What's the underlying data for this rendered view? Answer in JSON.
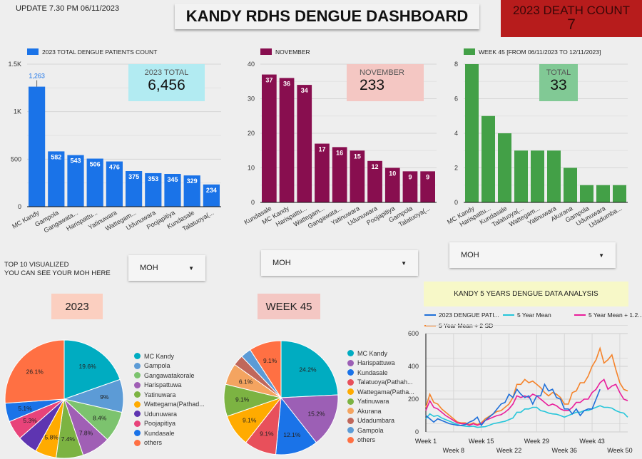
{
  "header": {
    "update": "UPDATE  7.30 PM  06/11/2023",
    "title": "KANDY RDHS DENGUE DASHBOARD",
    "death_label": "2023 DEATH COUNT",
    "death_value": "7"
  },
  "colors": {
    "blue": "#1a73e8",
    "maroon": "#880e4f",
    "green": "#43a047",
    "death": "#b71c1c"
  },
  "chart_data": [
    {
      "type": "bar",
      "id": "c1",
      "legend": "2023 TOTAL DENGUE PATIENTS COUNT",
      "categories": [
        "MC Kandy",
        "Gampola",
        "Gangawata...",
        "Harispattu...",
        "Yatinuwara",
        "Wattegam...",
        "Udunuwara",
        "Poojapitiya",
        "Kundasale",
        "Talatuoya(..."
      ],
      "values": [
        1263,
        582,
        543,
        506,
        476,
        375,
        353,
        345,
        329,
        234
      ],
      "data_labels": [
        "1,263",
        "582",
        "543",
        "506",
        "476",
        "375",
        "353",
        "345",
        "329",
        "234"
      ],
      "ylim": [
        0,
        1500
      ],
      "yticks": [
        0,
        500,
        1000,
        1500
      ],
      "ytick_labels": [
        "0",
        "500",
        "1K",
        "1.5K"
      ],
      "color": "#1a73e8"
    },
    {
      "type": "bar",
      "id": "c2",
      "legend": "NOVEMBER",
      "categories": [
        "Kundasale",
        "MC Kandy",
        "Harispattu...",
        "Wattegam...",
        "Gangawata...",
        "Yatinuwara",
        "Udunuwara",
        "Poojapitiya",
        "Gampola",
        "Talatuoya(..."
      ],
      "values": [
        37,
        36,
        34,
        17,
        16,
        15,
        12,
        10,
        9,
        9
      ],
      "data_labels": [
        "37",
        "36",
        "34",
        "17",
        "16",
        "15",
        "12",
        "10",
        "9",
        "9"
      ],
      "ylim": [
        0,
        40
      ],
      "yticks": [
        0,
        10,
        20,
        30,
        40
      ],
      "ytick_labels": [
        "0",
        "10",
        "20",
        "30",
        "40"
      ],
      "color": "#880e4f"
    },
    {
      "type": "bar",
      "id": "c3",
      "legend": "WEEK 45 [FROM 06/11/2023 TO 12/11/2023]",
      "categories": [
        "MC Kandy",
        "Harispattu...",
        "Kundasale",
        "Talatuoya(...",
        "Wattegam...",
        "Yatinuwara",
        "Akurana",
        "Gampola",
        "Udunuwara",
        "Udadumba..."
      ],
      "values": [
        8,
        5,
        4,
        3,
        3,
        3,
        2,
        1,
        1,
        1
      ],
      "ylim": [
        0,
        8
      ],
      "yticks": [
        0,
        2,
        4,
        6,
        8
      ],
      "ytick_labels": [
        "0",
        "2",
        "4",
        "6",
        "8"
      ],
      "color": "#43a047"
    },
    {
      "type": "pie",
      "id": "p1",
      "title": "2023",
      "labels": [
        "MC Kandy",
        "Gampola",
        "Gangawatakorale",
        "Harispattuwa",
        "Yatinuwara",
        "Wattegama(Pathad...",
        "Udunuwara",
        "Poojapitiya",
        "Kundasale",
        "others"
      ],
      "values": [
        19.6,
        9,
        8.4,
        7.8,
        7.4,
        5.8,
        5.5,
        5.3,
        5.1,
        26.1
      ],
      "data_labels": [
        "19.6%",
        "9%",
        "8.4%",
        "7.8%",
        "7.4%",
        "5.8%",
        "",
        "5.3%",
        "5.1%",
        "26.1%"
      ],
      "colors": [
        "#00acc1",
        "#5c9bd6",
        "#7cc36e",
        "#a05fb5",
        "#7cb342",
        "#ffab00",
        "#5e35b1",
        "#e8437a",
        "#1a73e8",
        "#ff7043"
      ]
    },
    {
      "type": "pie",
      "id": "p2",
      "title": "WEEK 45",
      "labels": [
        "MC Kandy",
        "Harispattuwa",
        "Kundasale",
        "Talatuoya(Pathah...",
        "Wattegama(Patha...",
        "Yatinuwara",
        "Akurana",
        "Udadumbara",
        "Gampola",
        "others"
      ],
      "values": [
        24.2,
        15.2,
        12.1,
        9.1,
        9.1,
        9.1,
        6.1,
        3.0,
        3.0,
        9.1
      ],
      "data_labels": [
        "24.2%",
        "15.2%",
        "12.1%",
        "9.1%",
        "9.1%",
        "9.1%",
        "6.1%",
        "",
        "",
        "9.1%"
      ],
      "colors": [
        "#00acc1",
        "#9c5fb5",
        "#1a73e8",
        "#e8505b",
        "#ffab00",
        "#7cb342",
        "#f4a460",
        "#c0675a",
        "#5c9bd6",
        "#ff7043"
      ]
    },
    {
      "type": "line",
      "id": "l1",
      "title": "KANDY  5 YEARS  DENGUE DATA ANALYSIS",
      "ylim": [
        0,
        600
      ],
      "yticks": [
        0,
        200,
        400,
        600
      ],
      "xtick_labels_top": [
        "Week 1",
        "Week 15",
        "Week 29",
        "Week 43"
      ],
      "xtick_labels_bottom": [
        "Week 8",
        "Week 22",
        "Week 36",
        "Week 50"
      ],
      "series": [
        {
          "name": "2023 DENGUE PATI...",
          "color": "#1e6fd9",
          "values": [
            100,
            80,
            60,
            80,
            70,
            60,
            50,
            45,
            40,
            40,
            45,
            60,
            70,
            90,
            40,
            70,
            90,
            110,
            140,
            170,
            180,
            230,
            210,
            260,
            230,
            210,
            220,
            170,
            220,
            220,
            290,
            250,
            260,
            210,
            200,
            140,
            140,
            110,
            140,
            100,
            130,
            140,
            140,
            200,
            260
          ]
        },
        {
          "name": "5 Year Mean",
          "color": "#26c6da",
          "values": [
            80,
            110,
            95,
            100,
            85,
            75,
            65,
            55,
            45,
            38,
            35,
            33,
            35,
            28,
            30,
            32,
            40,
            50,
            55,
            60,
            65,
            75,
            85,
            120,
            120,
            140,
            140,
            150,
            150,
            130,
            125,
            115,
            110,
            108,
            100,
            90,
            100,
            110,
            120,
            120,
            130,
            130,
            140,
            150,
            160,
            150,
            150,
            145,
            130,
            120,
            115,
            90
          ]
        },
        {
          "name": "5 Year Mean + 1.2...",
          "color": "#e91e9b",
          "values": [
            130,
            190,
            150,
            140,
            120,
            100,
            85,
            70,
            55,
            50,
            50,
            40,
            50,
            40,
            50,
            70,
            80,
            90,
            100,
            105,
            120,
            140,
            170,
            220,
            210,
            220,
            210,
            230,
            220,
            200,
            180,
            160,
            170,
            160,
            140,
            130,
            130,
            150,
            180,
            180,
            200,
            200,
            240,
            260,
            300,
            320,
            260,
            280,
            290,
            240,
            200,
            190
          ]
        },
        {
          "name": "5 Year Mean + 2 SD",
          "color": "#f5832a",
          "values": [
            150,
            230,
            180,
            170,
            140,
            120,
            100,
            80,
            60,
            55,
            55,
            45,
            55,
            45,
            55,
            80,
            95,
            110,
            125,
            130,
            150,
            170,
            210,
            290,
            290,
            320,
            300,
            310,
            290,
            270,
            240,
            220,
            240,
            230,
            210,
            170,
            170,
            240,
            250,
            300,
            300,
            340,
            400,
            440,
            510,
            420,
            440,
            470,
            380,
            300,
            260,
            250
          ]
        }
      ]
    }
  ],
  "kpis": {
    "total_label": "2023 TOTAL",
    "total_value": "6,456",
    "nov_label": "NOVEMBER",
    "nov_value": "233",
    "week_label": "TOTAL",
    "week_value": "33"
  },
  "controls": {
    "top10_line1": "TOP 10  VISUALIZED",
    "top10_line2": "YOU CAN SEE YOUR MOH  HERE",
    "moh1": "MOH",
    "moh2": "MOH",
    "moh3": "MOH",
    "caret": "▼"
  }
}
